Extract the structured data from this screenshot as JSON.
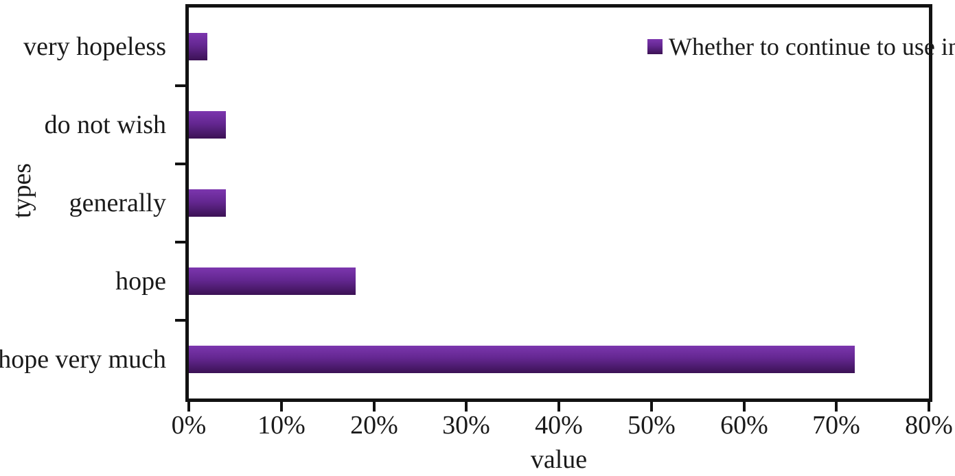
{
  "chart_data": {
    "type": "bar",
    "orientation": "horizontal",
    "title": "",
    "xlabel": "value",
    "ylabel": "types",
    "categories_top_to_bottom": [
      "very hopeless",
      "do not wish",
      "generally",
      "hope",
      "hope very much"
    ],
    "values_percent": [
      2,
      4,
      4,
      18,
      72
    ],
    "xlim": [
      0,
      80
    ],
    "x_tick_labels": [
      "0%",
      "10%",
      "20%",
      "30%",
      "40%",
      "50%",
      "60%",
      "70%",
      "80%"
    ],
    "grid": false,
    "legend": {
      "position": "top-right-inside",
      "entries": [
        "Whether to continue to use in the future"
      ]
    },
    "colors": {
      "bar_gradient_top": "#7c36ae",
      "bar_gradient_bottom": "#3b1254",
      "axis": "#121212",
      "text": "#1a1a1a",
      "background": "#ffffff"
    }
  }
}
